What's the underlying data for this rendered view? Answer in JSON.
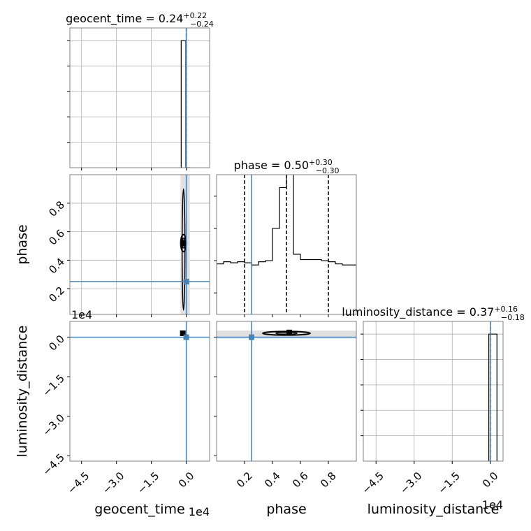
{
  "chart_data": {
    "type": "corner",
    "parameters": [
      "geocent_time",
      "phase",
      "luminosity_distance"
    ],
    "truth_color": "#4682b4",
    "panels": [
      {
        "id": "hist-geocent_time",
        "kind": "hist",
        "row": 0,
        "col": 0,
        "title": {
          "name": "geocent_time",
          "value": "0.24",
          "plus": "+0.22",
          "minus": "−0.24"
        },
        "xlim": [
          -50000,
          10000
        ],
        "ylim": [
          0,
          1.1
        ],
        "xticks": [
          -45000,
          -30000,
          -15000,
          0
        ],
        "yticks": [
          0.2,
          0.4,
          0.6,
          0.8,
          1.0
        ],
        "grid": true,
        "steps": {
          "edges": [
            -2200,
            -200,
            1800
          ],
          "heights": [
            1.0,
            0.0
          ]
        },
        "quantiles": [
          0.24
        ],
        "truth": 0.25
      },
      {
        "id": "scatter-phase-vs-geocent_time",
        "kind": "2d",
        "row": 1,
        "col": 0,
        "xlim": [
          -50000,
          10000
        ],
        "ylim": [
          0.02,
          1.0
        ],
        "xticks": [
          -45000,
          -30000,
          -15000,
          0
        ],
        "yticks": [
          0.2,
          0.4,
          0.6,
          0.8
        ],
        "ytick_labels": [
          "0.2",
          "0.4",
          "0.6",
          "0.8"
        ],
        "grid": true,
        "band_x": [
          -2500,
          1500
        ],
        "blob": {
          "cx": -1200,
          "cy": 0.52,
          "rx": 1200,
          "ry": 0.06
        },
        "spike": {
          "x": -1200,
          "y1": 0.05,
          "y2": 0.9
        },
        "marker": {
          "x": -1200,
          "y": 0.52
        },
        "truth": {
          "x": 0.25,
          "y": 0.25
        }
      },
      {
        "id": "hist-phase",
        "kind": "hist",
        "row": 1,
        "col": 1,
        "title": {
          "name": "phase",
          "value": "0.50",
          "plus": "+0.30",
          "minus": "−0.30"
        },
        "xlim": [
          0.0,
          1.0
        ],
        "ylim": [
          0,
          0.13
        ],
        "xticks": [
          0.2,
          0.4,
          0.6,
          0.8
        ],
        "yticks": [
          0.02,
          0.05,
          0.08,
          0.11
        ],
        "grid": false,
        "steps": {
          "edges": [
            0.0,
            0.05,
            0.1,
            0.15,
            0.2,
            0.25,
            0.3,
            0.35,
            0.4,
            0.45,
            0.5,
            0.55,
            0.6,
            0.65,
            0.7,
            0.75,
            0.8,
            0.85,
            0.9,
            0.95,
            1.0
          ],
          "heights": [
            0.047,
            0.049,
            0.048,
            0.049,
            0.048,
            0.046,
            0.049,
            0.05,
            0.08,
            0.118,
            0.135,
            0.056,
            0.051,
            0.051,
            0.051,
            0.05,
            0.049,
            0.047,
            0.046,
            0.046
          ]
        },
        "quantiles": [
          0.2,
          0.5,
          0.8
        ],
        "truth": 0.25
      },
      {
        "id": "scatter-luminosity_distance-vs-geocent_time",
        "kind": "2d",
        "row": 2,
        "col": 0,
        "xlim": [
          -50000,
          10000
        ],
        "ylim": [
          -47000,
          6000
        ],
        "xticks": [
          -45000,
          -30000,
          -15000,
          0
        ],
        "yticks": [
          -45000,
          -30000,
          -15000,
          0
        ],
        "ytick_labels": [
          "−4.5",
          "−3.0",
          "−1.5",
          "0.0"
        ],
        "grid": false,
        "y_exponent": "1e4",
        "marker": {
          "x": -1500,
          "y": 1500
        },
        "truth": {
          "x": 0.25,
          "y": 0
        }
      },
      {
        "id": "scatter-luminosity_distance-vs-phase",
        "kind": "2d",
        "row": 2,
        "col": 1,
        "xlim": [
          0.0,
          1.0
        ],
        "ylim": [
          -47000,
          6000
        ],
        "xticks": [
          0.2,
          0.4,
          0.6,
          0.8
        ],
        "yticks": [
          -45000,
          -30000,
          -15000,
          0
        ],
        "grid": false,
        "band_y": [
          -500,
          2500
        ],
        "blob": {
          "cx": 0.5,
          "cy": 1500,
          "rx": 0.17,
          "ry": 700
        },
        "marker": {
          "x": 0.52,
          "y": 1800
        },
        "truth": {
          "x": 0.25,
          "y": 0
        }
      },
      {
        "id": "hist-luminosity_distance",
        "kind": "hist",
        "row": 2,
        "col": 2,
        "title": {
          "name": "luminosity_distance",
          "value": "0.37",
          "plus": "+0.16",
          "minus": "−0.18"
        },
        "xlim": [
          -50000,
          5000
        ],
        "ylim": [
          0,
          1.1
        ],
        "xticks": [
          -45000,
          -30000,
          -15000,
          0
        ],
        "yticks": [
          0.2,
          0.4,
          0.6,
          0.8,
          1.0
        ],
        "grid": true,
        "steps": {
          "edges": [
            -600,
            0.37,
            2600
          ],
          "heights": [
            1.0,
            1.0
          ]
        },
        "quantiles": [
          0.37
        ],
        "truth": 0
      }
    ],
    "axis_labels": {
      "rows": [
        "phase",
        "luminosity_distance"
      ],
      "cols": [
        "geocent_time",
        "phase",
        "luminosity_distance"
      ]
    },
    "tick_labels": {
      "time": [
        "−4.5",
        "−3.0",
        "−1.5",
        "0.0"
      ],
      "phase": [
        "0.2",
        "0.4",
        "0.6",
        "0.8"
      ],
      "distance": [
        "−4.5",
        "−3.0",
        "−1.5",
        "0.0"
      ]
    },
    "exponents": {
      "time_x": "1e4",
      "distance_x": "1e4",
      "distance_y": "1e4"
    }
  }
}
